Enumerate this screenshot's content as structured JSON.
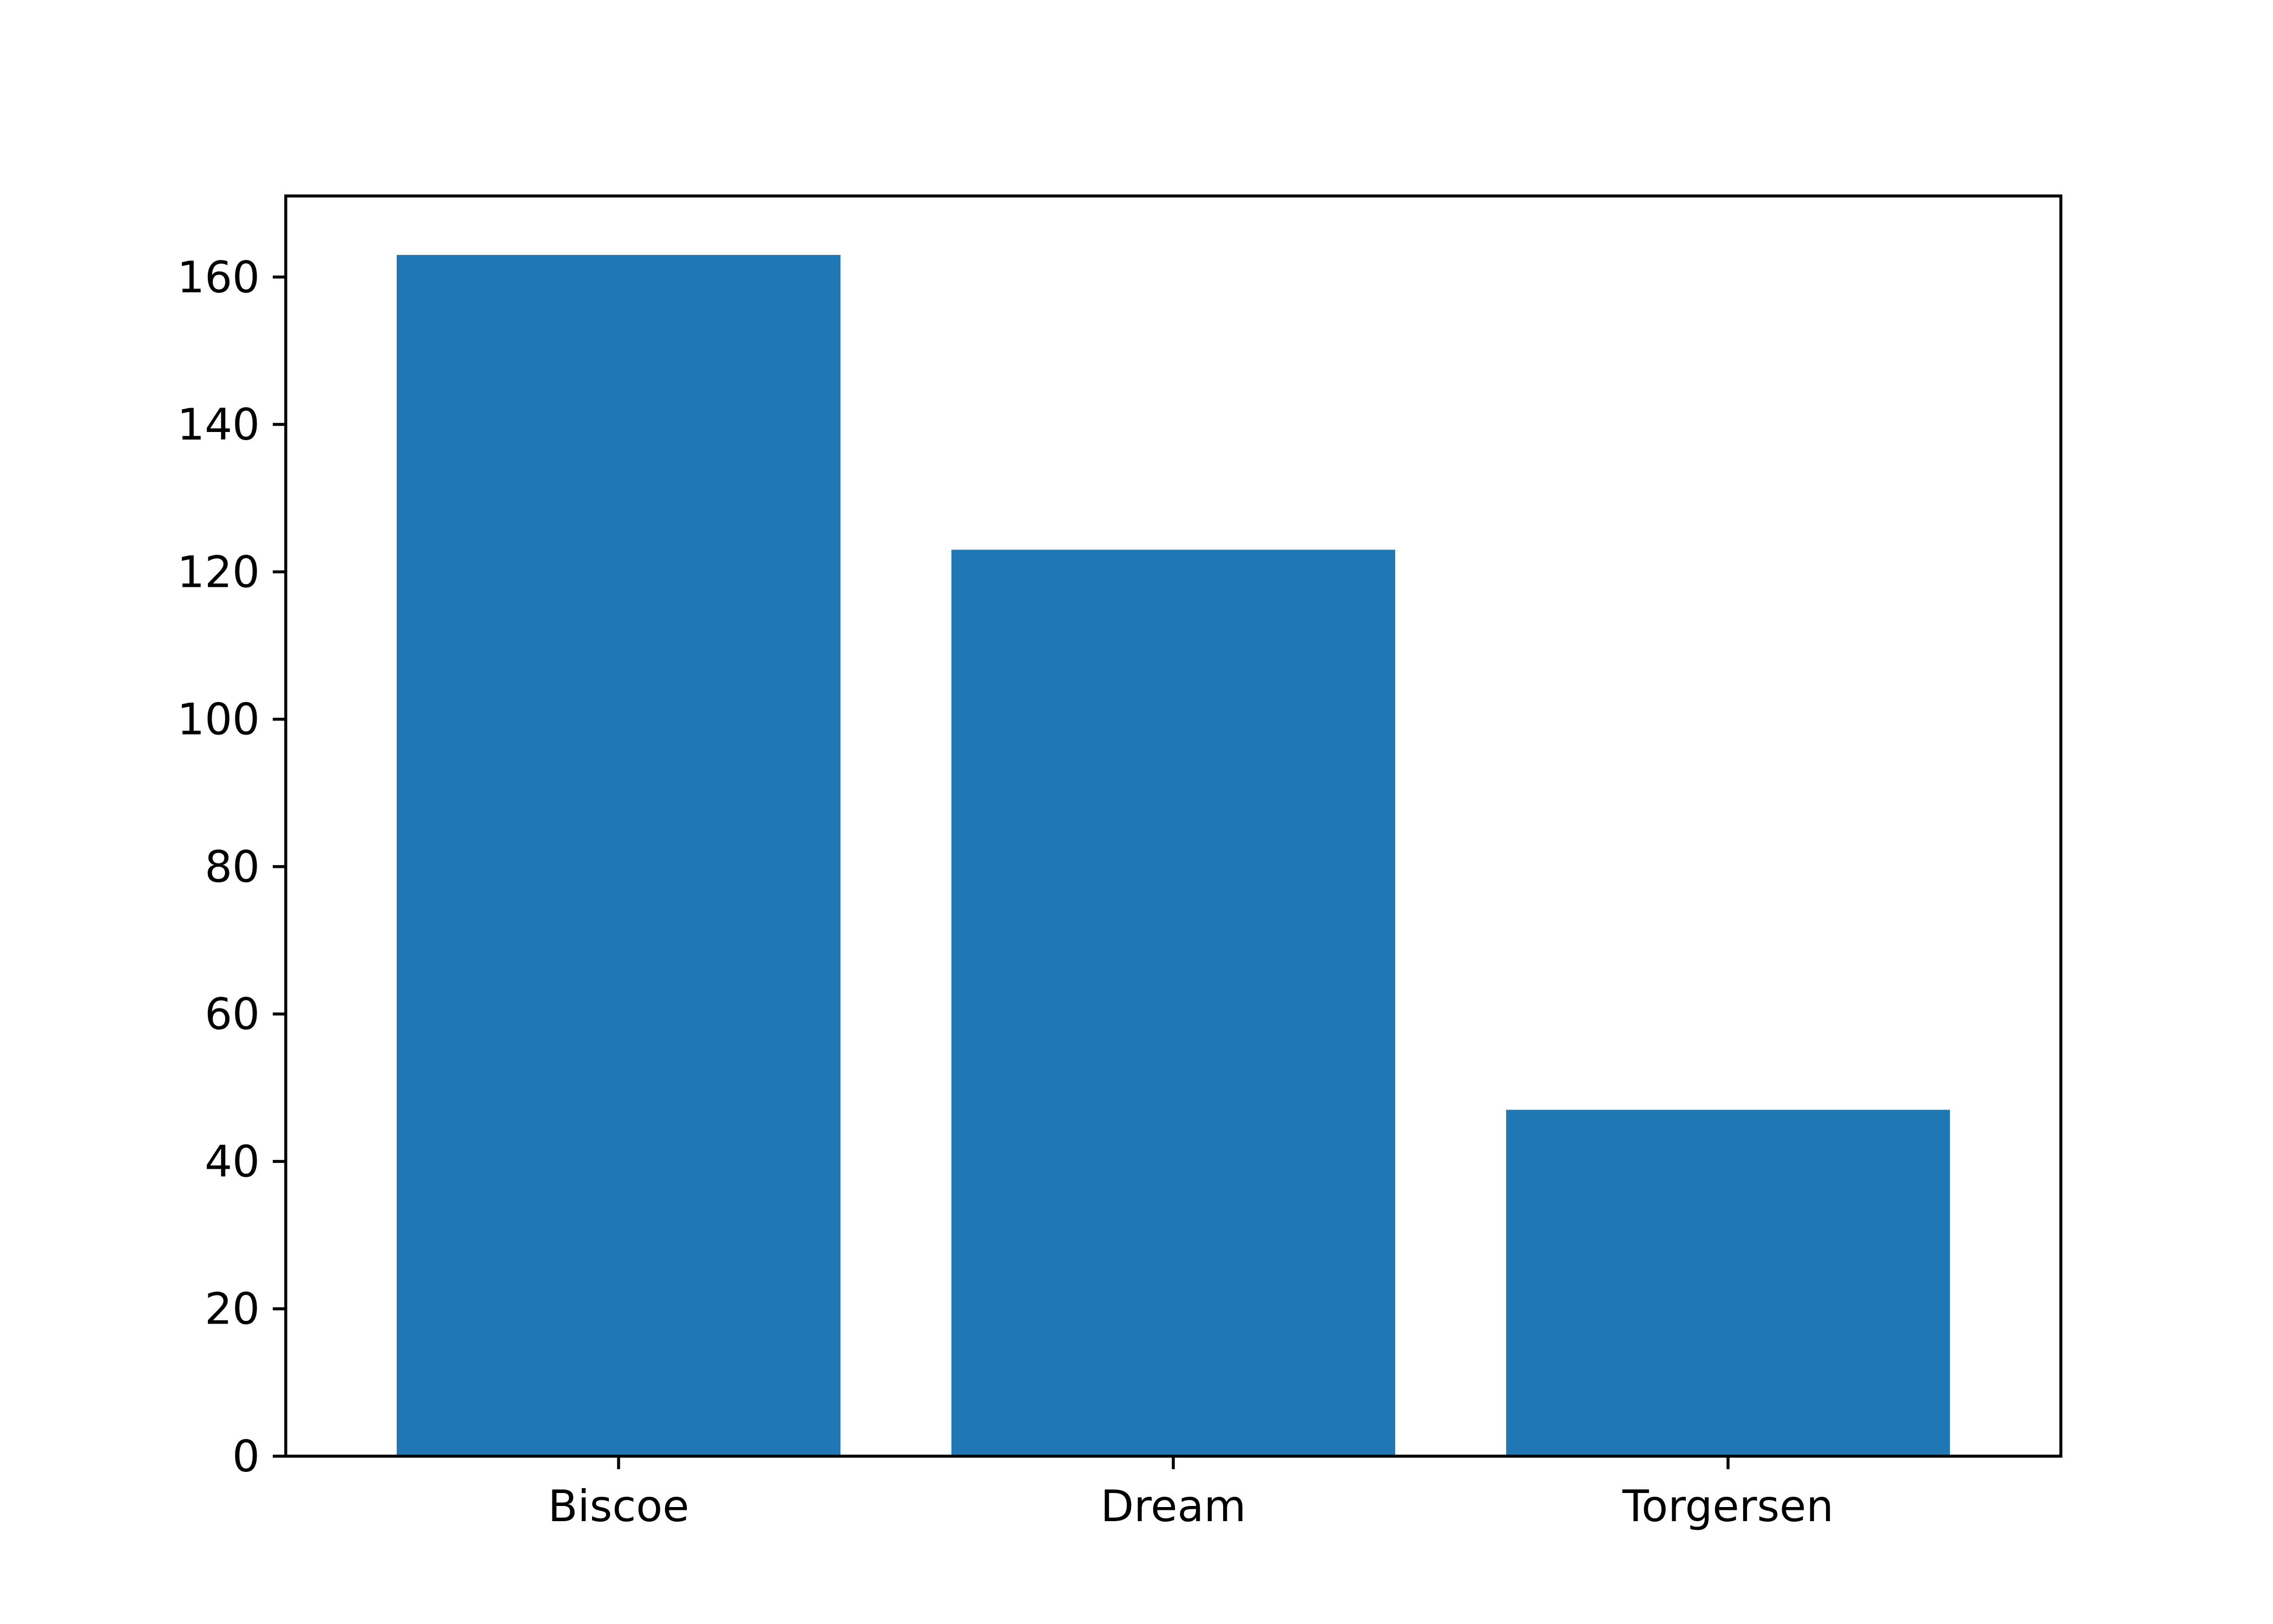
{
  "chart_data": {
    "type": "bar",
    "title": "",
    "xlabel": "",
    "ylabel": "",
    "categories": [
      "Biscoe",
      "Dream",
      "Torgersen"
    ],
    "values": [
      163,
      123,
      47
    ],
    "ylim": [
      0,
      171
    ],
    "yticks": [
      0,
      20,
      40,
      60,
      80,
      100,
      120,
      140,
      160
    ],
    "grid": false,
    "legend": "none",
    "bar_color": "#1f77b4"
  }
}
